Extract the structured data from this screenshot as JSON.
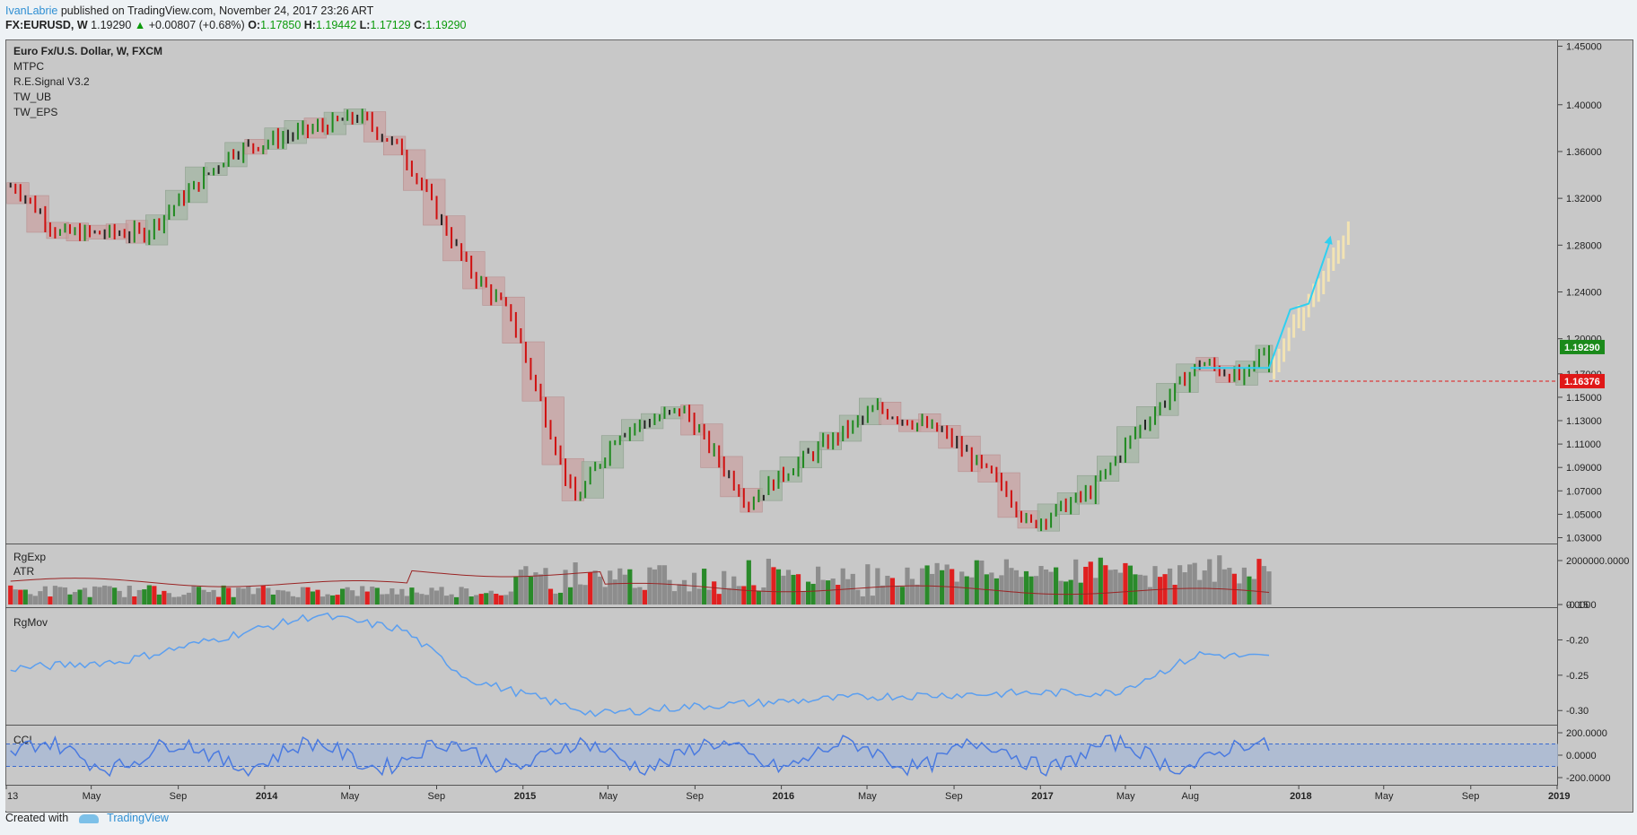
{
  "header": {
    "author": "IvanLabrie",
    "published_text": " published on TradingView.com, November 24, 2017 23:26 ART",
    "symbol": "FX:EURUSD, W",
    "price": "1.19290",
    "change": "+0.00807 (+0.68%)",
    "o_label": "O:",
    "o_value": "1.17850",
    "h_label": "H:",
    "h_value": "1.19442",
    "l_label": "L:",
    "l_value": "1.17129",
    "c_label": "C:",
    "c_value": "1.19290"
  },
  "footer": {
    "created_with": "Created with",
    "brand": "TradingView"
  },
  "colors": {
    "bull": "#1f8a1f",
    "bear": "#d01010",
    "neutral": "#222222",
    "rmov": "#5b9ff0",
    "cci": "#4a7ae0",
    "cci_band": "#a9b9d4",
    "atr": "#9a2424",
    "cyan": "#2fd0f0",
    "ghost": "#f2e3b3",
    "last_price": "#1a8a1a",
    "level": "#e01818"
  },
  "chart_data": [
    {
      "type": "candlestick",
      "pane": "price",
      "title": "Euro Fx/U.S. Dollar, W, FXCM",
      "indicators": [
        "MTPC",
        "R.E.Signal V3.2",
        "TW_UB",
        "TW_EPS"
      ],
      "y_axis_ticks": [
        1.45,
        1.4,
        1.36,
        1.32,
        1.28,
        1.24,
        1.2,
        1.17,
        1.15,
        1.13,
        1.11,
        1.09,
        1.07,
        1.05,
        1.03
      ],
      "ylim": [
        1.025,
        1.455
      ],
      "x_axis_labels": [
        "13",
        "May",
        "Sep",
        "2014",
        "May",
        "Sep",
        "2015",
        "May",
        "Sep",
        "2016",
        "May",
        "Sep",
        "2017",
        "May",
        "Aug",
        "2018",
        "May",
        "Sep",
        "2019"
      ],
      "key_points": [
        {
          "date": "2013-01",
          "close": 1.33
        },
        {
          "date": "2013-03",
          "close": 1.29
        },
        {
          "date": "2013-07",
          "close": 1.29
        },
        {
          "date": "2013-11",
          "close": 1.36
        },
        {
          "date": "2014-03",
          "close": 1.38
        },
        {
          "date": "2014-05",
          "close": 1.39
        },
        {
          "date": "2014-07",
          "close": 1.36
        },
        {
          "date": "2014-10",
          "close": 1.26
        },
        {
          "date": "2014-12",
          "close": 1.22
        },
        {
          "date": "2015-03",
          "close": 1.06
        },
        {
          "date": "2015-05",
          "close": 1.12
        },
        {
          "date": "2015-08",
          "close": 1.14
        },
        {
          "date": "2015-11",
          "close": 1.06
        },
        {
          "date": "2016-01",
          "close": 1.09
        },
        {
          "date": "2016-05",
          "close": 1.14
        },
        {
          "date": "2016-08",
          "close": 1.12
        },
        {
          "date": "2016-11",
          "close": 1.07
        },
        {
          "date": "2016-12",
          "close": 1.04
        },
        {
          "date": "2017-03",
          "close": 1.07
        },
        {
          "date": "2017-05",
          "close": 1.12
        },
        {
          "date": "2017-08",
          "close": 1.18
        },
        {
          "date": "2017-10",
          "close": 1.165
        },
        {
          "date": "2017-11",
          "close": 1.1929
        }
      ],
      "last_price": "1.19290",
      "level_marker": "1.16376",
      "projection": {
        "from": 1.175,
        "to": 1.29,
        "end_date": "2018-03"
      }
    },
    {
      "type": "bar",
      "pane": "volume",
      "indicators": [
        "RgExp",
        "ATR"
      ],
      "y_axis_ticks": [
        "2000000.0000",
        "0.0000"
      ]
    },
    {
      "type": "line",
      "pane": "oscillator",
      "indicators": [
        "RgMov"
      ],
      "y_axis_ticks": [
        -0.15,
        -0.2,
        -0.25,
        -0.3
      ],
      "ylim": [
        -0.155,
        -0.32
      ],
      "key_points": [
        {
          "date": "2013-01",
          "value": -0.24
        },
        {
          "date": "2013-06",
          "value": -0.23
        },
        {
          "date": "2014-03",
          "value": -0.165
        },
        {
          "date": "2014-07",
          "value": -0.185
        },
        {
          "date": "2014-10",
          "value": -0.255
        },
        {
          "date": "2015-04",
          "value": -0.305
        },
        {
          "date": "2015-08",
          "value": -0.295
        },
        {
          "date": "2016-05",
          "value": -0.28
        },
        {
          "date": "2016-12",
          "value": -0.275
        },
        {
          "date": "2017-04",
          "value": -0.275
        },
        {
          "date": "2017-08",
          "value": -0.22
        },
        {
          "date": "2017-11",
          "value": -0.225
        }
      ]
    },
    {
      "type": "line",
      "pane": "cci",
      "indicators": [
        "CCI"
      ],
      "y_axis_ticks": [
        "200.0000",
        "0.0000",
        "-200.0000"
      ],
      "band": [
        100,
        -100
      ]
    }
  ]
}
